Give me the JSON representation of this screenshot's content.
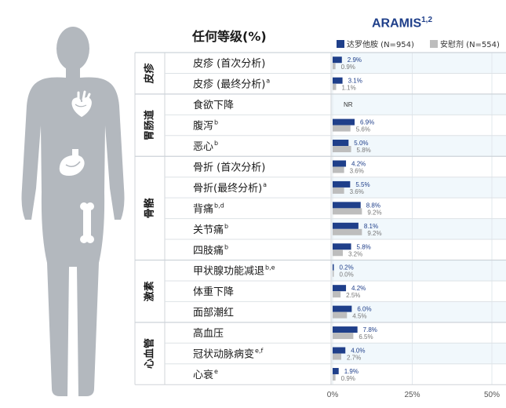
{
  "colors": {
    "drug": "#1f3f8a",
    "placebo": "#bdbdbd",
    "value_drug": "#1f3f8a",
    "value_placebo": "#777777",
    "stripe": "#f1f8fc",
    "figure": "#b3b8be"
  },
  "icons": [
    "heart-icon",
    "stomach-icon",
    "bone-icon"
  ],
  "chart_data": {
    "type": "bar",
    "orientation": "horizontal",
    "title": "任何等级(%)",
    "study": "ARAMIS",
    "study_sup": "1,2",
    "xlim": [
      0,
      50
    ],
    "xticks": [
      "0%",
      "25%",
      "50%"
    ],
    "xtick_values": [
      0,
      25,
      50
    ],
    "legend_position": "top-right",
    "series": [
      {
        "name": "达罗他胺 (N=954)",
        "key": "drug"
      },
      {
        "name": "安慰剂 (N=554)",
        "key": "placebo"
      }
    ],
    "groups": [
      {
        "name": "皮疹",
        "rows": [
          {
            "label": "皮疹 (首次分析)",
            "sup": "",
            "drug": 2.9,
            "placebo": 0.9,
            "drug_label": "2.9%",
            "placebo_label": "0.9%"
          },
          {
            "label": "皮疹 (最终分析)",
            "sup": "a",
            "drug": 3.1,
            "placebo": 1.1,
            "drug_label": "3.1%",
            "placebo_label": "1.1%"
          }
        ]
      },
      {
        "name": "胃肠道",
        "rows": [
          {
            "label": "食欲下降",
            "sup": "",
            "drug": null,
            "placebo": null,
            "drug_label": "NR",
            "placebo_label": ""
          },
          {
            "label": "腹泻",
            "sup": "b",
            "drug": 6.9,
            "placebo": 5.6,
            "drug_label": "6.9%",
            "placebo_label": "5.6%"
          },
          {
            "label": "恶心",
            "sup": "b",
            "drug": 5.0,
            "placebo": 5.8,
            "drug_label": "5.0%",
            "placebo_label": "5.8%"
          }
        ]
      },
      {
        "name": "骨骼",
        "rows": [
          {
            "label": "骨折 (首次分析)",
            "sup": "",
            "drug": 4.2,
            "placebo": 3.6,
            "drug_label": "4.2%",
            "placebo_label": "3.6%"
          },
          {
            "label": "骨折(最终分析)",
            "sup": "a",
            "drug": 5.5,
            "placebo": 3.6,
            "drug_label": "5.5%",
            "placebo_label": "3.6%"
          },
          {
            "label": "背痛",
            "sup": "b,d",
            "drug": 8.8,
            "placebo": 9.2,
            "drug_label": "8.8%",
            "placebo_label": "9.2%"
          },
          {
            "label": "关节痛",
            "sup": "b",
            "drug": 8.1,
            "placebo": 9.2,
            "drug_label": "8.1%",
            "placebo_label": "9.2%"
          },
          {
            "label": "四肢痛",
            "sup": "b",
            "drug": 5.8,
            "placebo": 3.2,
            "drug_label": "5.8%",
            "placebo_label": "3.2%"
          }
        ]
      },
      {
        "name": "激素",
        "rows": [
          {
            "label": "甲状腺功能减退",
            "sup": "b,e",
            "drug": 0.2,
            "placebo": 0.0,
            "drug_label": "0.2%",
            "placebo_label": "0.0%"
          },
          {
            "label": "体重下降",
            "sup": "",
            "drug": 4.2,
            "placebo": 2.5,
            "drug_label": "4.2%",
            "placebo_label": "2.5%"
          },
          {
            "label": "面部潮红",
            "sup": "",
            "drug": 6.0,
            "placebo": 4.5,
            "drug_label": "6.0%",
            "placebo_label": "4.5%"
          }
        ]
      },
      {
        "name": "心血管",
        "rows": [
          {
            "label": "高血压",
            "sup": "",
            "drug": 7.8,
            "placebo": 6.5,
            "drug_label": "7.8%",
            "placebo_label": "6.5%"
          },
          {
            "label": "冠状动脉病变",
            "sup": "e,f",
            "drug": 4.0,
            "placebo": 2.7,
            "drug_label": "4.0%",
            "placebo_label": "2.7%"
          },
          {
            "label": "心衰",
            "sup": "e",
            "drug": 1.9,
            "placebo": 0.9,
            "drug_label": "1.9%",
            "placebo_label": "0.9%"
          }
        ]
      }
    ]
  }
}
